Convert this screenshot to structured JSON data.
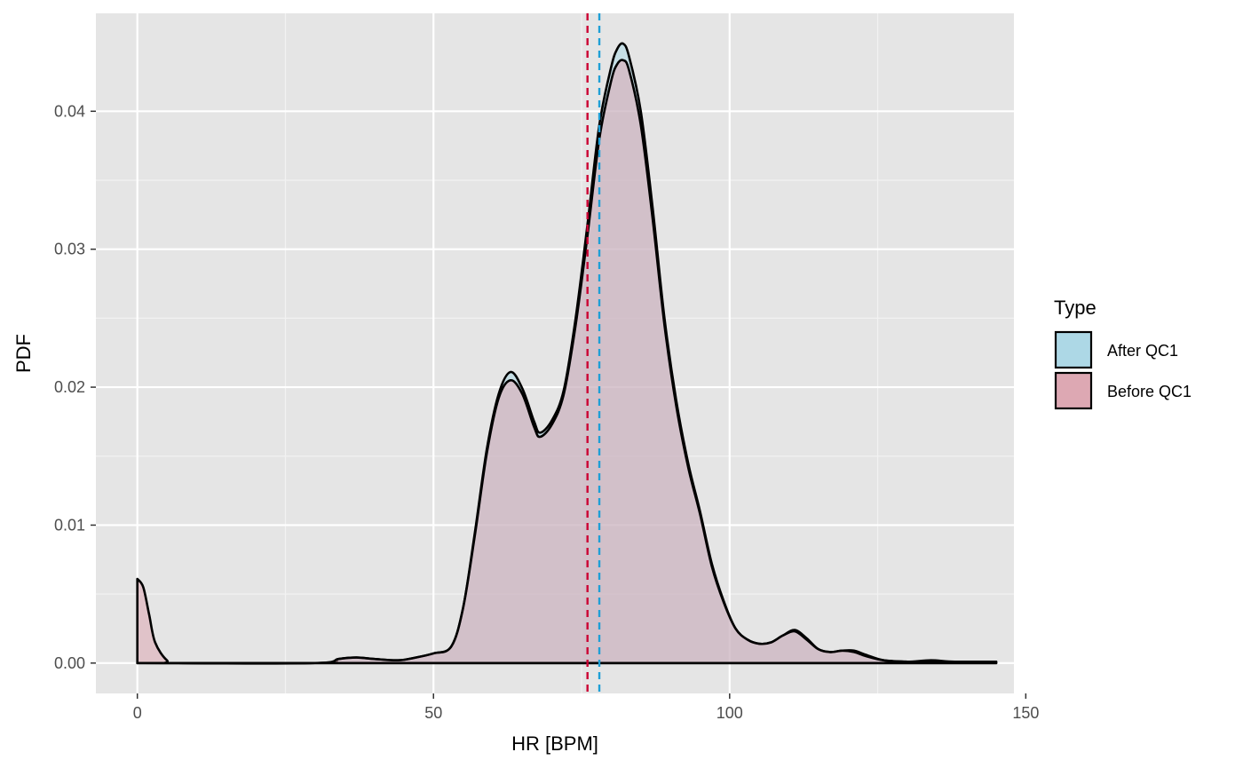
{
  "chart_data": {
    "type": "area",
    "xlabel": "HR [BPM]",
    "ylabel": "PDF",
    "xlim": [
      -7,
      148
    ],
    "ylim": [
      -0.0022,
      0.0471
    ],
    "x_ticks": [
      0,
      50,
      100,
      150
    ],
    "x_tick_labels": [
      "0",
      "50",
      "100",
      "150"
    ],
    "y_ticks": [
      0.0,
      0.01,
      0.02,
      0.03,
      0.04
    ],
    "y_tick_labels": [
      "0.00",
      "0.01",
      "0.02",
      "0.03",
      "0.04"
    ],
    "grid": true,
    "legend": {
      "title": "Type",
      "position": "right",
      "entries": [
        {
          "label": "After QC1",
          "color": "#add8e6"
        },
        {
          "label": "Before QC1",
          "color": "#dda8b3"
        }
      ]
    },
    "series": [
      {
        "name": "After QC1",
        "fill": "#add8e6",
        "points": [
          [
            0,
            0
          ],
          [
            30,
            0
          ],
          [
            34,
            0.0003
          ],
          [
            37,
            0.0004
          ],
          [
            40,
            0.0003
          ],
          [
            44,
            0.0002
          ],
          [
            47,
            0.0004
          ],
          [
            50,
            0.0007
          ],
          [
            53,
            0.0012
          ],
          [
            55,
            0.004
          ],
          [
            57,
            0.0095
          ],
          [
            59,
            0.0155
          ],
          [
            61,
            0.0195
          ],
          [
            63,
            0.0211
          ],
          [
            65,
            0.0199
          ],
          [
            67,
            0.0175
          ],
          [
            68,
            0.0167
          ],
          [
            70,
            0.0176
          ],
          [
            72,
            0.0198
          ],
          [
            74,
            0.025
          ],
          [
            76,
            0.0318
          ],
          [
            78,
            0.039
          ],
          [
            80,
            0.0432
          ],
          [
            81,
            0.0445
          ],
          [
            82,
            0.0449
          ],
          [
            83,
            0.044
          ],
          [
            85,
            0.04
          ],
          [
            87,
            0.033
          ],
          [
            89,
            0.025
          ],
          [
            91,
            0.019
          ],
          [
            93,
            0.0145
          ],
          [
            95,
            0.011
          ],
          [
            97,
            0.0072
          ],
          [
            99,
            0.0045
          ],
          [
            101,
            0.0025
          ],
          [
            103,
            0.0017
          ],
          [
            105,
            0.0014
          ],
          [
            107,
            0.0015
          ],
          [
            109,
            0.002
          ],
          [
            111,
            0.0024
          ],
          [
            113,
            0.0018
          ],
          [
            115,
            0.001
          ],
          [
            117,
            0.0008
          ],
          [
            119,
            0.0009
          ],
          [
            121,
            0.0009
          ],
          [
            123,
            0.0006
          ],
          [
            126,
            0.0002
          ],
          [
            130,
            0.0001
          ],
          [
            134,
            0.0002
          ],
          [
            138,
            0.0001
          ],
          [
            145,
            0.0001
          ]
        ],
        "mean_x": 78
      },
      {
        "name": "Before QC1",
        "fill": "#dda8b3",
        "points": [
          [
            0,
            0.0061
          ],
          [
            1,
            0.0055
          ],
          [
            2,
            0.0035
          ],
          [
            3,
            0.0015
          ],
          [
            5,
            0.0002
          ],
          [
            7,
            0
          ],
          [
            30,
            0
          ],
          [
            34,
            0.0003
          ],
          [
            37,
            0.0004
          ],
          [
            40,
            0.0003
          ],
          [
            44,
            0.0002
          ],
          [
            47,
            0.0004
          ],
          [
            50,
            0.0007
          ],
          [
            53,
            0.0012
          ],
          [
            55,
            0.004
          ],
          [
            57,
            0.0093
          ],
          [
            59,
            0.0152
          ],
          [
            61,
            0.0192
          ],
          [
            63,
            0.0205
          ],
          [
            65,
            0.0195
          ],
          [
            67,
            0.0171
          ],
          [
            68,
            0.0164
          ],
          [
            70,
            0.0173
          ],
          [
            72,
            0.0195
          ],
          [
            74,
            0.0245
          ],
          [
            76,
            0.031
          ],
          [
            78,
            0.038
          ],
          [
            80,
            0.0422
          ],
          [
            81,
            0.0434
          ],
          [
            82,
            0.0437
          ],
          [
            83,
            0.043
          ],
          [
            85,
            0.039
          ],
          [
            87,
            0.0322
          ],
          [
            89,
            0.0245
          ],
          [
            91,
            0.0186
          ],
          [
            93,
            0.0142
          ],
          [
            95,
            0.0108
          ],
          [
            97,
            0.007
          ],
          [
            99,
            0.0044
          ],
          [
            101,
            0.0025
          ],
          [
            103,
            0.0017
          ],
          [
            105,
            0.0014
          ],
          [
            107,
            0.0015
          ],
          [
            109,
            0.002
          ],
          [
            111,
            0.0023
          ],
          [
            113,
            0.0017
          ],
          [
            115,
            0.001
          ],
          [
            117,
            0.0008
          ],
          [
            119,
            0.0009
          ],
          [
            121,
            0.0008
          ],
          [
            123,
            0.0005
          ],
          [
            126,
            0.0002
          ],
          [
            130,
            0.0001
          ],
          [
            134,
            0.0001
          ],
          [
            138,
            0.0001
          ],
          [
            145,
            0.0001
          ]
        ],
        "mean_x": 76
      }
    ],
    "mean_lines": [
      {
        "series": "Before QC1",
        "x": 76,
        "color": "#cc0033",
        "style": "dashed"
      },
      {
        "series": "After QC1",
        "x": 78,
        "color": "#1e9fd6",
        "style": "dashed"
      }
    ]
  }
}
